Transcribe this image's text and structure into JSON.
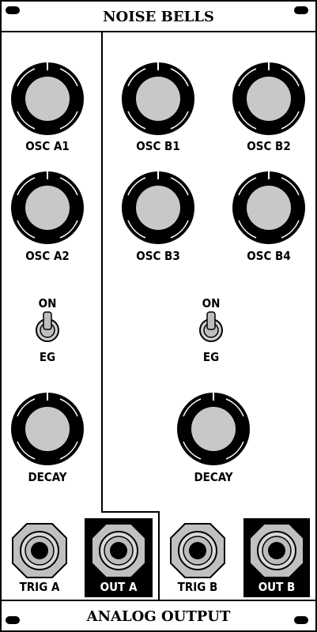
{
  "header": {
    "title": "NOISE BELLS"
  },
  "footer": {
    "title": "ANALOG OUTPUT"
  },
  "channel_a": {
    "knobs": [
      {
        "label": "OSC A1"
      },
      {
        "label": "OSC A2"
      }
    ],
    "switch": {
      "top_label": "ON",
      "bottom_label": "EG"
    },
    "decay": {
      "label": "DECAY"
    },
    "trig": {
      "label": "TRIG A"
    },
    "out": {
      "label": "OUT A"
    }
  },
  "channel_b": {
    "knobs": [
      {
        "label": "OSC B1"
      },
      {
        "label": "OSC B2"
      },
      {
        "label": "OSC B3"
      },
      {
        "label": "OSC B4"
      }
    ],
    "switch": {
      "top_label": "ON",
      "bottom_label": "EG"
    },
    "decay": {
      "label": "DECAY"
    },
    "trig": {
      "label": "TRIG B"
    },
    "out": {
      "label": "OUT B"
    }
  },
  "colors": {
    "panel": "#ffffff",
    "ink": "#000000",
    "knob_cap": "#c8c8c8",
    "toggle": "#bdbdbd"
  }
}
